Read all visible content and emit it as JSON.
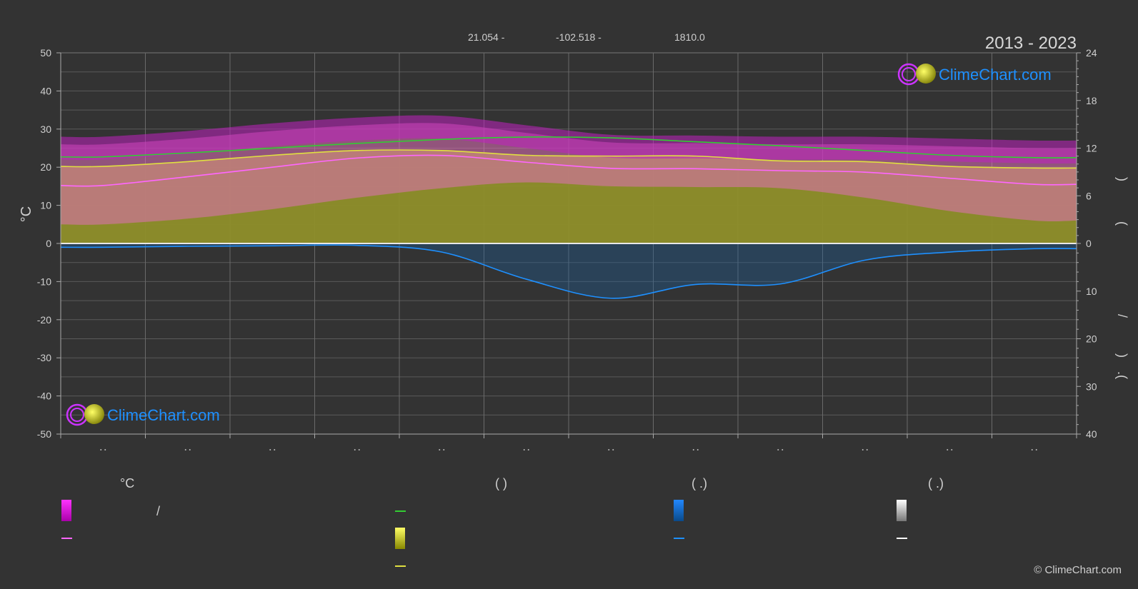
{
  "header": {
    "lat": "21.054 -",
    "lon": "-102.518 -",
    "elev": "1810.0",
    "years": "2013 - 2023"
  },
  "brand": {
    "name": "ClimeChart.com",
    "copyright": "© ClimeChart.com",
    "color": "#1e90ff"
  },
  "axes": {
    "left_label": "°C",
    "left_ticks": [
      50,
      40,
      30,
      20,
      10,
      0,
      -10,
      -20,
      -30,
      -40,
      -50
    ],
    "right_top_ticks": [
      24,
      18,
      12,
      6,
      0
    ],
    "right_bottom_ticks": [
      10,
      20,
      30,
      40
    ],
    "right_label_parts": [
      ")",
      "(",
      "/",
      ")",
      "(",
      "."
    ]
  },
  "legend": {
    "headers": [
      "°C",
      "(          )",
      "(     .)",
      "(     .)"
    ],
    "slash": "/"
  },
  "colors": {
    "temp_range": "#e020e0",
    "mean_temp": "#ff66ff",
    "daylight": "#33cc33",
    "sunshine": "#e0e040",
    "precip": "#1e90ff",
    "snow": "#ffffff"
  },
  "chart_data": {
    "type": "line",
    "x": [
      "Jan",
      "Feb",
      "Mar",
      "Apr",
      "May",
      "Jun",
      "Jul",
      "Aug",
      "Sep",
      "Oct",
      "Nov",
      "Dec"
    ],
    "ylim": [
      -50,
      50
    ],
    "right_ylim_top": [
      0,
      24
    ],
    "right_ylim_bottom": [
      0,
      40
    ],
    "series": [
      {
        "key": "daylight",
        "axis": "hours",
        "values": [
          10.9,
          11.4,
          12.0,
          12.6,
          13.1,
          13.4,
          13.3,
          12.8,
          12.3,
          11.7,
          11.1,
          10.8
        ]
      },
      {
        "key": "sunshine",
        "axis": "hours",
        "values": [
          9.7,
          10.3,
          11.1,
          11.7,
          11.7,
          11.1,
          11.0,
          11.0,
          10.4,
          10.3,
          9.7,
          9.5
        ]
      },
      {
        "key": "mean_temp",
        "axis": "temp",
        "values": [
          15.2,
          17.5,
          20.0,
          22.4,
          23.1,
          21.3,
          19.7,
          19.6,
          19.1,
          18.7,
          17.1,
          15.5
        ]
      },
      {
        "key": "max_temp",
        "axis": "temp",
        "values": [
          26.0,
          27.5,
          29.5,
          31.0,
          31.5,
          29.0,
          26.5,
          26.3,
          26.0,
          26.0,
          25.5,
          25.0
        ]
      },
      {
        "key": "min_temp",
        "axis": "temp",
        "values": [
          5.0,
          6.5,
          9.0,
          12.0,
          14.5,
          16.0,
          15.0,
          14.8,
          14.5,
          12.0,
          8.5,
          6.0
        ]
      },
      {
        "key": "precip",
        "axis": "mm",
        "values": [
          0.8,
          0.6,
          0.5,
          0.4,
          1.8,
          7.5,
          11.5,
          8.6,
          8.5,
          3.5,
          1.8,
          1.1
        ]
      }
    ]
  }
}
